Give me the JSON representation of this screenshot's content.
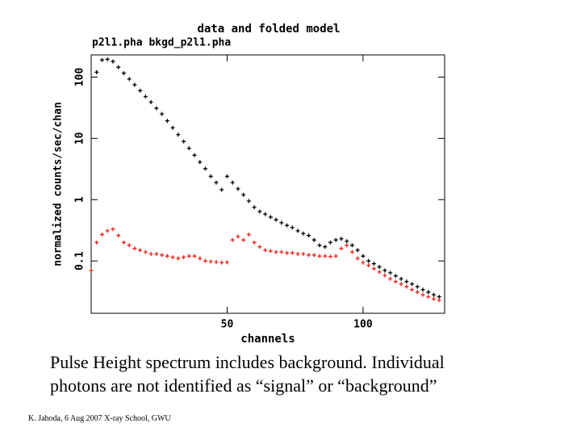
{
  "chart_data": {
    "type": "scatter",
    "title": "data and folded model",
    "subtitle": "p2l1.pha bkgd_p2l1.pha",
    "xlabel": "channels",
    "ylabel": "normalized counts/sec/chan",
    "xlim": [
      0,
      130
    ],
    "xticks": [
      50,
      100
    ],
    "ylim": [
      0.014,
      230
    ],
    "yticks": [
      0.1,
      1,
      10,
      100
    ],
    "ylog": true,
    "series": [
      {
        "color": "#000000",
        "x": [
          2,
          4,
          6,
          8,
          10,
          12,
          14,
          16,
          18,
          20,
          22,
          24,
          26,
          28,
          30,
          32,
          34,
          36,
          38,
          40,
          42,
          44,
          46,
          48,
          50,
          52,
          54,
          56,
          58,
          60,
          62,
          64,
          66,
          68,
          70,
          72,
          74,
          76,
          78,
          80,
          82,
          84,
          86,
          88,
          90,
          92,
          94,
          96,
          98,
          100,
          102,
          104,
          106,
          108,
          110,
          112,
          114,
          116,
          118,
          120,
          122,
          124,
          126,
          128
        ],
        "values": [
          120,
          190,
          195,
          180,
          145,
          116,
          93,
          75,
          60,
          48,
          39,
          31,
          25,
          19.3,
          14.9,
          11.5,
          8.9,
          6.9,
          5.3,
          4.1,
          3.2,
          2.4,
          1.9,
          1.45,
          2.4,
          1.9,
          1.5,
          1.2,
          0.95,
          0.75,
          0.64,
          0.58,
          0.52,
          0.47,
          0.42,
          0.38,
          0.35,
          0.31,
          0.28,
          0.26,
          0.22,
          0.18,
          0.17,
          0.2,
          0.22,
          0.23,
          0.21,
          0.18,
          0.15,
          0.12,
          0.1,
          0.09,
          0.08,
          0.07,
          0.064,
          0.057,
          0.051,
          0.046,
          0.042,
          0.038,
          0.034,
          0.031,
          0.028,
          0.026
        ]
      },
      {
        "color": "#e8231c",
        "x": [
          0,
          2,
          4,
          6,
          8,
          10,
          12,
          14,
          16,
          18,
          20,
          22,
          24,
          26,
          28,
          30,
          32,
          34,
          36,
          38,
          40,
          42,
          44,
          46,
          48,
          50,
          52,
          54,
          56,
          58,
          60,
          62,
          64,
          66,
          68,
          70,
          72,
          74,
          76,
          78,
          80,
          82,
          84,
          86,
          88,
          90,
          92,
          94,
          96,
          98,
          100,
          102,
          104,
          106,
          108,
          110,
          112,
          114,
          116,
          118,
          120,
          122,
          124,
          126,
          128
        ],
        "values": [
          0.07,
          0.2,
          0.27,
          0.31,
          0.33,
          0.26,
          0.2,
          0.18,
          0.16,
          0.15,
          0.14,
          0.13,
          0.13,
          0.125,
          0.12,
          0.115,
          0.11,
          0.115,
          0.12,
          0.12,
          0.11,
          0.1,
          0.098,
          0.096,
          0.094,
          0.095,
          0.22,
          0.25,
          0.22,
          0.27,
          0.2,
          0.17,
          0.15,
          0.145,
          0.14,
          0.14,
          0.135,
          0.135,
          0.13,
          0.13,
          0.125,
          0.125,
          0.12,
          0.12,
          0.118,
          0.12,
          0.16,
          0.18,
          0.14,
          0.11,
          0.094,
          0.085,
          0.075,
          0.066,
          0.058,
          0.051,
          0.046,
          0.042,
          0.038,
          0.034,
          0.031,
          0.028,
          0.026,
          0.024,
          0.023
        ]
      }
    ]
  },
  "caption": "Pulse Height spectrum includes background.  Individual photons are not identified as “signal” or “background”",
  "footer": "K. Jahoda, 6 Aug 2007 X-ray School, GWU"
}
